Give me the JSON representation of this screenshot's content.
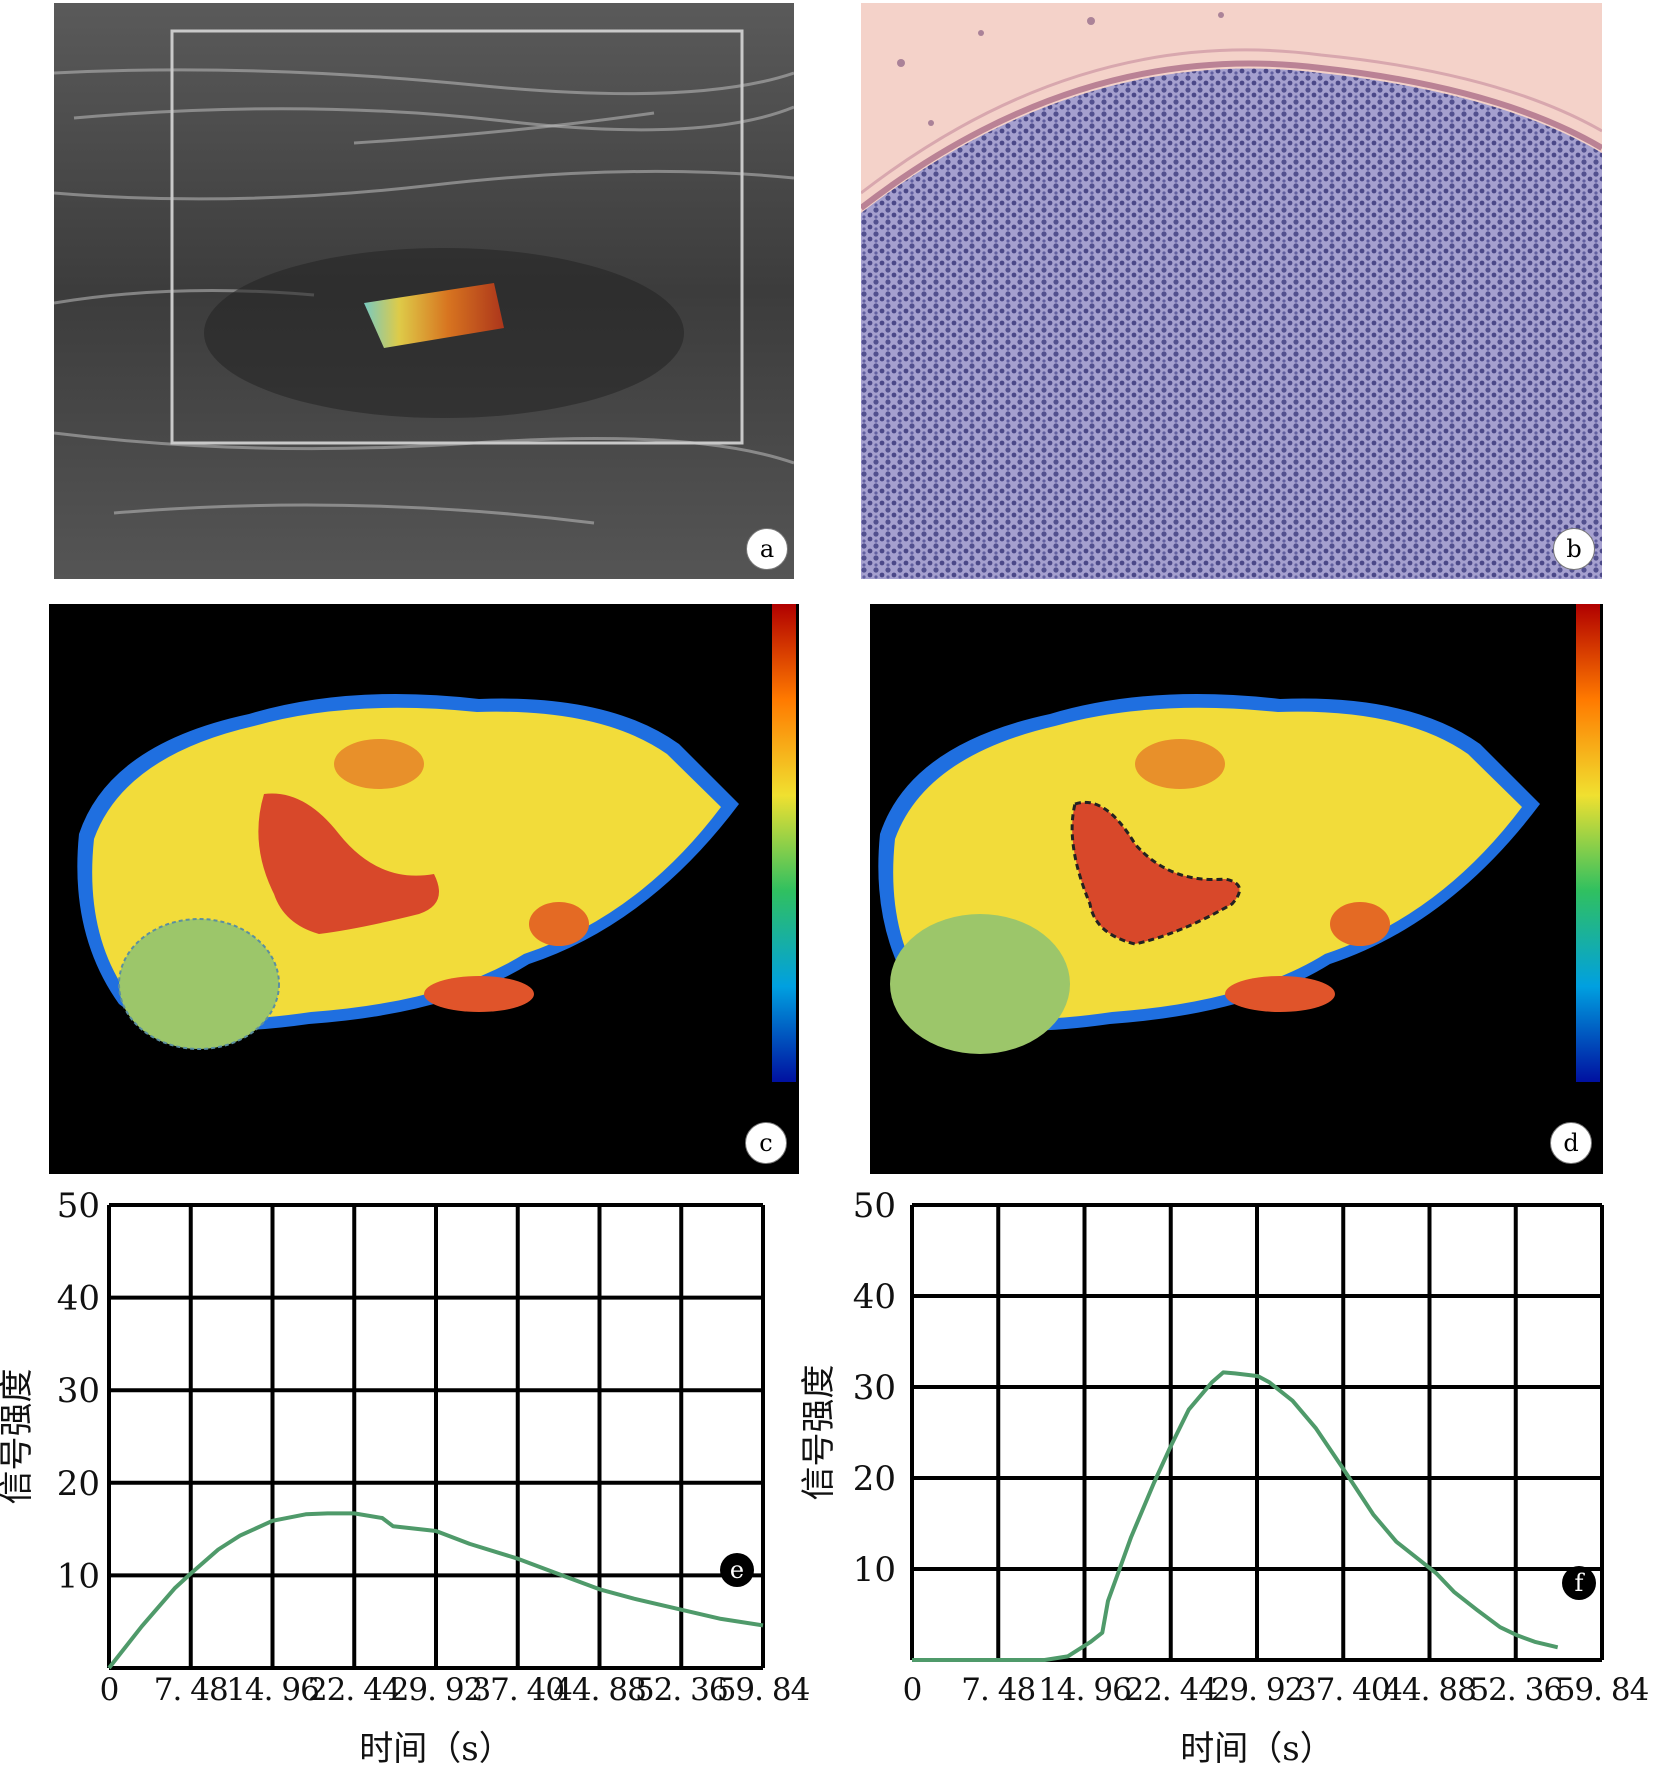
{
  "panels": {
    "a": {
      "label": "a"
    },
    "b": {
      "label": "b"
    },
    "c": {
      "label": "c"
    },
    "d": {
      "label": "d"
    }
  },
  "colors": {
    "curve": "#4f9a6a",
    "grid": "#000000",
    "map_yellow": "#f2dc3a",
    "map_red": "#d8482a",
    "map_green": "#9cc66a",
    "histology_bg": "#f4d2c9",
    "histology_cells": "#52508f"
  },
  "chart_data": [
    {
      "panel_label": "e",
      "type": "line",
      "title": "",
      "xlabel": "时间（s）",
      "ylabel": "信号强度",
      "xlim": [
        0,
        59.84
      ],
      "ylim": [
        0,
        50
      ],
      "xticks": [
        0,
        7.48,
        14.96,
        22.44,
        29.92,
        37.4,
        44.88,
        52.36,
        59.84
      ],
      "xtick_labels": [
        "0",
        "7. 48",
        "14. 96",
        "22. 44",
        "29. 92",
        "37. 40",
        "44. 88",
        "52. 36",
        "59. 84"
      ],
      "yticks": [
        10,
        20,
        30,
        40,
        50
      ],
      "ytick_labels": [
        "10",
        "20",
        "30",
        "40",
        "50"
      ],
      "grid": true,
      "series": [
        {
          "x": [
            0,
            3,
            6,
            7.48,
            10,
            12,
            14.96,
            18,
            20,
            22.44,
            25,
            26,
            29.92,
            33,
            37.4,
            41,
            44.88,
            48,
            52.36,
            56,
            59.84
          ],
          "y": [
            0,
            4.5,
            8.6,
            10.2,
            12.8,
            14.3,
            15.9,
            16.6,
            16.7,
            16.7,
            16.2,
            15.3,
            14.8,
            13.4,
            11.8,
            10.2,
            8.5,
            7.5,
            6.3,
            5.3,
            4.6
          ]
        }
      ]
    },
    {
      "panel_label": "f",
      "type": "line",
      "title": "",
      "xlabel": "时间（s）",
      "ylabel": "信号强度",
      "xlim": [
        0,
        59.84
      ],
      "ylim": [
        0,
        50
      ],
      "xticks": [
        0,
        7.48,
        14.96,
        22.44,
        29.92,
        37.4,
        44.88,
        52.36,
        59.84
      ],
      "xtick_labels": [
        "0",
        "7. 48",
        "14. 96",
        "22. 44",
        "29. 92",
        "37. 40",
        "44. 88",
        "52. 36",
        "59. 84"
      ],
      "yticks": [
        10,
        20,
        30,
        40,
        50
      ],
      "ytick_labels": [
        "10",
        "20",
        "30",
        "40",
        "50"
      ],
      "grid": true,
      "series": [
        {
          "x": [
            0,
            7.48,
            11.5,
            13.5,
            15.5,
            16.5,
            17,
            18,
            19,
            21,
            22.44,
            24,
            26,
            27,
            28,
            30,
            31,
            33,
            35,
            37.4,
            40,
            42,
            44,
            45.5,
            47,
            49,
            51,
            52.5,
            54,
            56
          ],
          "y": [
            0,
            0,
            0,
            0.4,
            2.0,
            3.0,
            6.5,
            10.0,
            13.5,
            19.5,
            23.5,
            27.5,
            30.5,
            31.6,
            31.5,
            31.2,
            30.5,
            28.5,
            25.5,
            21.0,
            16.0,
            13.0,
            11.0,
            9.5,
            7.5,
            5.5,
            3.6,
            2.7,
            2.0,
            1.4
          ]
        }
      ]
    }
  ]
}
